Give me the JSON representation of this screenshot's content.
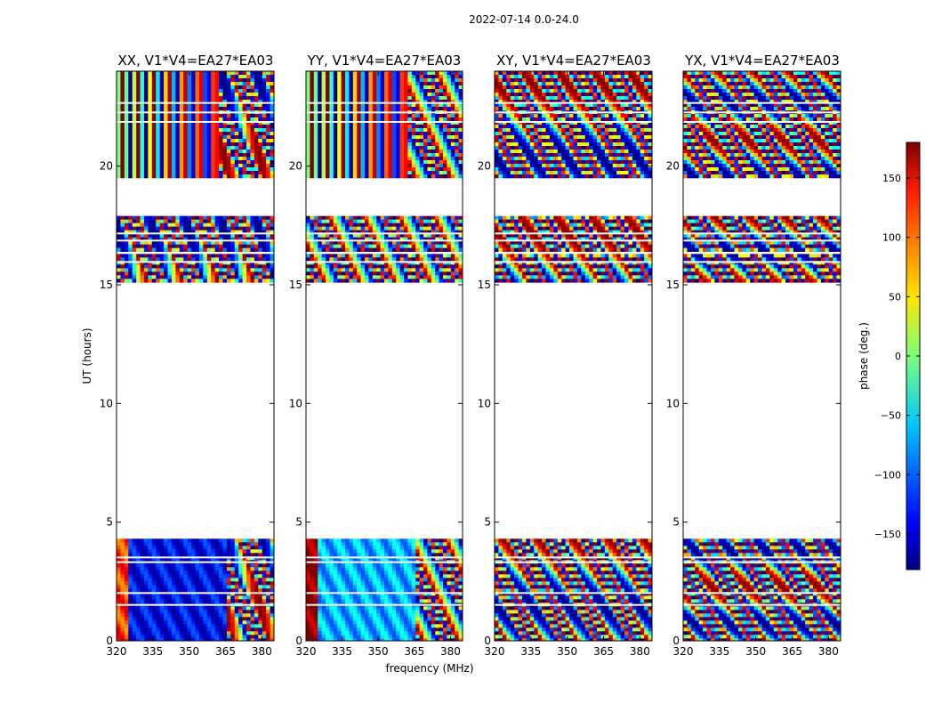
{
  "chart_data": {
    "type": "heatmap",
    "suptitle": "2022-07-14 0.0-24.0",
    "xlabel": "frequency (MHz)",
    "ylabel": "UT (hours)",
    "xlim": [
      320,
      385
    ],
    "ylim": [
      0,
      24
    ],
    "xticks": [
      320,
      335,
      350,
      365,
      380
    ],
    "yticks": [
      0,
      5,
      10,
      15,
      20
    ],
    "panels": [
      {
        "title": "XX, V1*V4=EA27*EA03"
      },
      {
        "title": "YY, V1*V4=EA27*EA03"
      },
      {
        "title": "XY, V1*V4=EA27*EA03"
      },
      {
        "title": "YX, V1*V4=EA27*EA03"
      }
    ],
    "data_time_ranges_hours": [
      [
        0,
        4.3
      ],
      [
        15.1,
        16.3
      ],
      [
        16.4,
        17.9
      ],
      [
        19.5,
        24
      ]
    ],
    "colorbar": {
      "label": "phase (deg.)",
      "colormap": "jet",
      "range": [
        -180,
        180
      ],
      "ticks": [
        -150,
        -100,
        -50,
        0,
        50,
        100,
        150
      ],
      "tick_labels": [
        "−150",
        "−100",
        "−50",
        "0",
        "50",
        "100",
        "150"
      ]
    }
  }
}
